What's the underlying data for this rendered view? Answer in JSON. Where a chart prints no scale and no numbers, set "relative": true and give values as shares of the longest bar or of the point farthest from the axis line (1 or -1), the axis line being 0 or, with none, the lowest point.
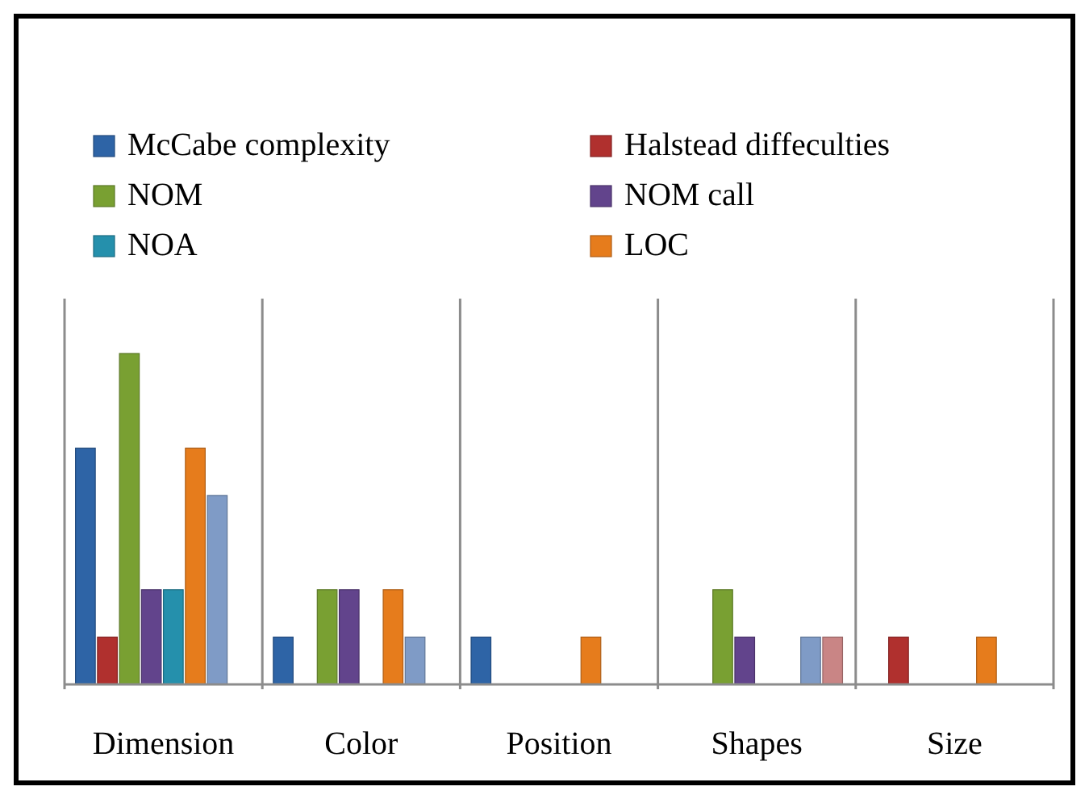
{
  "chart_data": {
    "type": "bar",
    "relative": true,
    "categories": [
      "Dimension",
      "Color",
      "Position",
      "Shapes",
      "Size"
    ],
    "series": [
      {
        "name": "McCabe complexity",
        "color": "#2e64a6",
        "values": [
          0.714,
          0.143,
          0.143,
          0,
          0
        ]
      },
      {
        "name": "Halstead diffeculties",
        "color": "#b0302e",
        "values": [
          0.143,
          0,
          0,
          0,
          0.143
        ]
      },
      {
        "name": "NOM",
        "color": "#79a032",
        "values": [
          1,
          0.286,
          0,
          0.286,
          0
        ]
      },
      {
        "name": "NOM call",
        "color": "#62448c",
        "values": [
          0.286,
          0.286,
          0,
          0.143,
          0
        ]
      },
      {
        "name": "NOA",
        "color": "#2590ac",
        "values": [
          0.286,
          0,
          0,
          0,
          0
        ]
      },
      {
        "name": "LOC",
        "color": "#e67c1c",
        "values": [
          0.714,
          0.286,
          0.143,
          0,
          0.143
        ]
      },
      {
        "color": "#7f9bc6",
        "values": [
          0.571,
          0.143,
          0,
          0.143,
          0
        ]
      },
      {
        "color": "#c98585",
        "values": [
          0,
          0,
          0,
          0.143,
          0
        ]
      }
    ],
    "grid": "x",
    "legend": "top"
  }
}
